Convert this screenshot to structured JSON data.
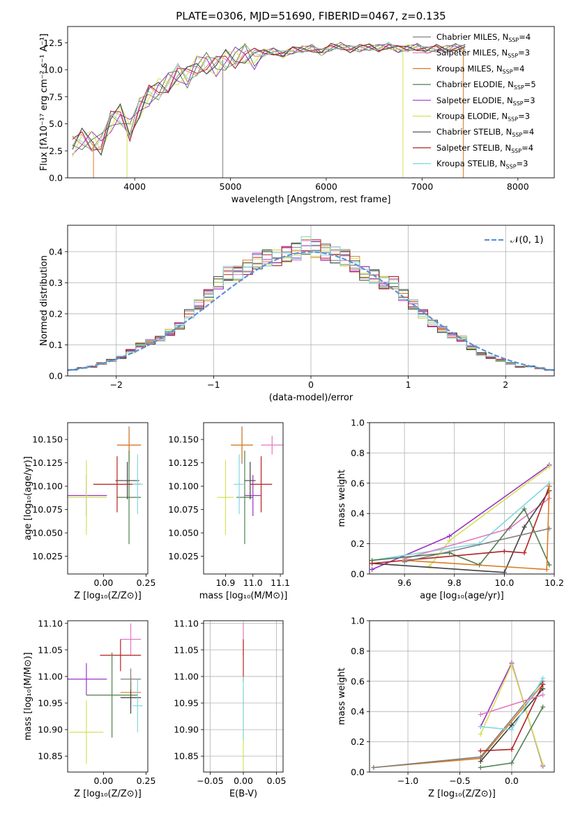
{
  "figure": {
    "title": "PLATE=0306, MJD=51690, FIBERID=0467, z=0.135"
  },
  "models": [
    {
      "name": "Chabrier MILES, N$_{SSP}$=4",
      "label": "Chabrier MILES, N",
      "sub": "SSP",
      "tail": "=4",
      "color": "#7f7f7f"
    },
    {
      "name": "Salpeter MILES, N$_{SSP}$=3",
      "label": "Salpeter MILES, N",
      "sub": "SSP",
      "tail": "=3",
      "color": "#e377c2"
    },
    {
      "name": "Kroupa MILES, N$_{SSP}$=4",
      "label": "Kroupa MILES, N",
      "sub": "SSP",
      "tail": "=4",
      "color": "#d97c23"
    },
    {
      "name": "Chabrier ELODIE, N$_{SSP}$=5",
      "label": "Chabrier ELODIE, N",
      "sub": "SSP",
      "tail": "=5",
      "color": "#4f7f4f"
    },
    {
      "name": "Salpeter ELODIE, N$_{SSP}$=3",
      "label": "Salpeter ELODIE, N",
      "sub": "SSP",
      "tail": "=3",
      "color": "#9b30c4"
    },
    {
      "name": "Kroupa ELODIE, N$_{SSP}$=3",
      "label": "Kroupa ELODIE, N",
      "sub": "SSP",
      "tail": "=3",
      "color": "#d4e157"
    },
    {
      "name": "Chabrier STELIB, N$_{SSP}$=4",
      "label": "Chabrier STELIB, N",
      "sub": "SSP",
      "tail": "=4",
      "color": "#404040"
    },
    {
      "name": "Salpeter STELIB, N$_{SSP}$=4",
      "label": "Salpeter STELIB, N",
      "sub": "SSP",
      "tail": "=4",
      "color": "#b22222"
    },
    {
      "name": "Kroupa STELIB, N$_{SSP}$=3",
      "label": "Kroupa STELIB, N",
      "sub": "SSP",
      "tail": "=3",
      "color": "#7fd8e0"
    }
  ],
  "chart_data": [
    {
      "id": "spectrum",
      "type": "line",
      "xlabel": "wavelength [Angstrom, rest frame]",
      "ylabel": "Flux [fλ10⁻¹⁷ erg cm⁻² s⁻¹ A⁻¹]",
      "xlim": [
        3300,
        8380
      ],
      "ylim": [
        0,
        14
      ],
      "xticks": [
        4000,
        5000,
        6000,
        7000,
        8000
      ],
      "yticks": [
        0.0,
        2.5,
        5.0,
        7.5,
        10.0,
        12.5
      ],
      "ytick_labels": [
        "0.0",
        "2.5",
        "5.0",
        "7.5",
        "10.0",
        "12.5"
      ],
      "x": [
        3350,
        3450,
        3550,
        3650,
        3750,
        3850,
        3950,
        4050,
        4150,
        4250,
        4350,
        4450,
        4550,
        4650,
        4750,
        4850,
        4950,
        5050,
        5150,
        5250,
        5350,
        5450,
        5550,
        5650,
        5750,
        5850,
        5950,
        6050,
        6150,
        6250,
        6350,
        6450,
        6550,
        6650,
        6750,
        6850,
        6950,
        7050,
        7150,
        7250,
        7350,
        7450
      ],
      "y": [
        2.9,
        3.6,
        3.4,
        3.1,
        5.2,
        5.9,
        4.4,
        6.4,
        7.6,
        8.2,
        8.8,
        9.6,
        9.3,
        10.4,
        10.6,
        10.3,
        10.9,
        11.1,
        11.5,
        11.0,
        11.6,
        11.7,
        11.4,
        11.8,
        11.9,
        12.0,
        11.6,
        12.1,
        12.2,
        11.9,
        12.0,
        12.1,
        12.0,
        12.2,
        11.9,
        12.0,
        12.1,
        11.8,
        12.0,
        11.9,
        12.1,
        12.0
      ]
    },
    {
      "id": "residuals",
      "type": "line",
      "xlabel": "(data-model)/error",
      "ylabel": "Normed distribution",
      "xlim": [
        -2.5,
        2.5
      ],
      "ylim": [
        0,
        0.485
      ],
      "xticks": [
        -2,
        -1,
        0,
        1,
        2
      ],
      "xtick_labels": [
        "−2",
        "−1",
        "0",
        "1",
        "2"
      ],
      "yticks": [
        0.0,
        0.1,
        0.2,
        0.3,
        0.4
      ],
      "ytick_labels": [
        "0.0",
        "0.1",
        "0.2",
        "0.3",
        "0.4"
      ],
      "gaussian_legend": "𝒩(0, 1)",
      "x": [
        -2.45,
        -2.35,
        -2.25,
        -2.15,
        -2.05,
        -1.95,
        -1.85,
        -1.75,
        -1.65,
        -1.55,
        -1.45,
        -1.35,
        -1.25,
        -1.15,
        -1.05,
        -0.95,
        -0.85,
        -0.75,
        -0.65,
        -0.55,
        -0.45,
        -0.35,
        -0.25,
        -0.15,
        -0.05,
        0.05,
        0.15,
        0.25,
        0.35,
        0.45,
        0.55,
        0.65,
        0.75,
        0.85,
        0.95,
        1.05,
        1.15,
        1.25,
        1.35,
        1.45,
        1.55,
        1.65,
        1.75,
        1.85,
        1.95,
        2.05,
        2.15,
        2.25,
        2.35,
        2.45
      ],
      "y": [
        0.02,
        0.025,
        0.03,
        0.04,
        0.05,
        0.06,
        0.08,
        0.1,
        0.11,
        0.12,
        0.14,
        0.16,
        0.2,
        0.23,
        0.26,
        0.3,
        0.33,
        0.33,
        0.35,
        0.37,
        0.38,
        0.38,
        0.39,
        0.4,
        0.42,
        0.41,
        0.4,
        0.39,
        0.38,
        0.36,
        0.33,
        0.32,
        0.3,
        0.3,
        0.26,
        0.23,
        0.2,
        0.17,
        0.15,
        0.13,
        0.12,
        0.09,
        0.07,
        0.06,
        0.05,
        0.04,
        0.03,
        0.03,
        0.025,
        0.02
      ]
    },
    {
      "id": "age_vs_Z",
      "type": "scatter",
      "xlabel": "Z [log₁₀(Z/Z⊙)]",
      "ylabel": "age  [log₁₀(age/yr)]",
      "xlim": [
        -0.21,
        0.26
      ],
      "ylim": [
        10.006,
        10.168
      ],
      "xticks": [
        0.0,
        0.25
      ],
      "xtick_labels": [
        "0.00",
        "0.25"
      ],
      "yticks": [
        10.025,
        10.05,
        10.075,
        10.1,
        10.125,
        10.15
      ],
      "ytick_labels": [
        "10.025",
        "10.050",
        "10.075",
        "10.100",
        "10.125",
        "10.150"
      ],
      "points": [
        {
          "series": "Chabrier MILES",
          "x": 0.15,
          "y": 10.144,
          "xerr": 0.07,
          "yerr": 0.02
        },
        {
          "series": "Salpeter MILES",
          "x": 0.15,
          "y": 10.144,
          "xerr": 0.07,
          "yerr": 0.01
        },
        {
          "series": "Kroupa MILES",
          "x": 0.15,
          "y": 10.144,
          "xerr": 0.07,
          "yerr": 0.018
        },
        {
          "series": "Chabrier ELODIE",
          "x": 0.15,
          "y": 10.088,
          "xerr": 0.07,
          "yerr": 0.05
        },
        {
          "series": "Salpeter ELODIE",
          "x": -0.1,
          "y": 10.09,
          "xerr": 0.12,
          "yerr": 0.022
        },
        {
          "series": "Kroupa ELODIE",
          "x": -0.1,
          "y": 10.088,
          "xerr": 0.12,
          "yerr": 0.04
        },
        {
          "series": "Chabrier STELIB",
          "x": 0.14,
          "y": 10.106,
          "xerr": 0.07,
          "yerr": 0.02
        },
        {
          "series": "Salpeter STELIB",
          "x": 0.08,
          "y": 10.102,
          "xerr": 0.14,
          "yerr": 0.03
        },
        {
          "series": "Kroupa STELIB",
          "x": 0.2,
          "y": 10.102,
          "xerr": 0.03,
          "yerr": 0.032
        }
      ]
    },
    {
      "id": "age_vs_mass",
      "type": "scatter",
      "xlabel": "mass [log₁₀(M/M⊙)]",
      "ylabel": "",
      "xlim": [
        10.82,
        11.11
      ],
      "ylim": [
        10.006,
        10.168
      ],
      "xticks": [
        10.9,
        11.0,
        11.1
      ],
      "xtick_labels": [
        "10.9",
        "11.0",
        "11.1"
      ],
      "yticks": [
        10.025,
        10.05,
        10.075,
        10.1,
        10.125,
        10.15
      ],
      "ytick_labels": [
        "10.025",
        "10.050",
        "10.075",
        "10.100",
        "10.125",
        "10.150"
      ],
      "points": [
        {
          "series": "Chabrier MILES",
          "x": 10.96,
          "y": 10.144,
          "xerr": 0.04,
          "yerr": 0.02
        },
        {
          "series": "Salpeter MILES",
          "x": 11.07,
          "y": 10.144,
          "xerr": 0.04,
          "yerr": 0.01
        },
        {
          "series": "Kroupa MILES",
          "x": 10.96,
          "y": 10.144,
          "xerr": 0.04,
          "yerr": 0.018
        },
        {
          "series": "Chabrier ELODIE",
          "x": 10.97,
          "y": 10.088,
          "xerr": 0.03,
          "yerr": 0.05
        },
        {
          "series": "Salpeter ELODIE",
          "x": 11.0,
          "y": 10.09,
          "xerr": 0.03,
          "yerr": 0.022
        },
        {
          "series": "Kroupa ELODIE",
          "x": 10.9,
          "y": 10.088,
          "xerr": 0.03,
          "yerr": 0.04
        },
        {
          "series": "Chabrier STELIB",
          "x": 10.99,
          "y": 10.106,
          "xerr": 0.02,
          "yerr": 0.02
        },
        {
          "series": "Salpeter STELIB",
          "x": 11.03,
          "y": 10.102,
          "xerr": 0.04,
          "yerr": 0.03
        },
        {
          "series": "Kroupa STELIB",
          "x": 10.95,
          "y": 10.102,
          "xerr": 0.02,
          "yerr": 0.032
        }
      ]
    },
    {
      "id": "weight_vs_age",
      "type": "line",
      "xlabel": "age  [log₁₀(age/yr)]",
      "ylabel": "mass weight",
      "xlim": [
        9.46,
        10.2
      ],
      "ylim": [
        0,
        1
      ],
      "xticks": [
        9.6,
        9.8,
        10.0,
        10.2
      ],
      "xtick_labels": [
        "9.6",
        "9.8",
        "10.0",
        "10.2"
      ],
      "yticks": [
        0,
        0.2,
        0.4,
        0.6,
        0.8,
        1.0
      ],
      "ytick_labels": [
        "0.0",
        "0.2",
        "0.4",
        "0.6",
        "0.8",
        "1.0"
      ],
      "series": [
        {
          "name": "Salpeter ELODIE",
          "x": [
            9.47,
            9.78,
            10.18
          ],
          "y": [
            0.03,
            0.25,
            0.72
          ]
        },
        {
          "name": "Kroupa ELODIE",
          "x": [
            9.7,
            9.78,
            10.18
          ],
          "y": [
            0.05,
            0.22,
            0.71
          ]
        },
        {
          "name": "Kroupa STELIB",
          "x": [
            9.47,
            9.9,
            10.18
          ],
          "y": [
            0.09,
            0.2,
            0.6
          ]
        },
        {
          "name": "Salpeter MILES",
          "x": [
            9.6,
            10.02,
            10.18
          ],
          "y": [
            0.1,
            0.3,
            0.5
          ]
        },
        {
          "name": "Chabrier ELODIE",
          "x": [
            9.47,
            9.78,
            9.9,
            10.08,
            10.18
          ],
          "y": [
            0.09,
            0.14,
            0.06,
            0.43,
            0.06
          ]
        },
        {
          "name": "Chabrier STELIB",
          "x": [
            9.47,
            10.0,
            10.08,
            10.18
          ],
          "y": [
            0.07,
            0.01,
            0.31,
            0.55
          ]
        },
        {
          "name": "Salpeter STELIB",
          "x": [
            9.47,
            10.0,
            10.08,
            10.18
          ],
          "y": [
            0.07,
            0.15,
            0.14,
            0.58
          ]
        },
        {
          "name": "Kroupa MILES",
          "x": [
            9.6,
            10.17,
            10.18
          ],
          "y": [
            0.09,
            0.03,
            0.58
          ]
        },
        {
          "name": "Chabrier MILES",
          "x": [
            9.6,
            10.18
          ],
          "y": [
            0.08,
            0.3
          ]
        }
      ]
    },
    {
      "id": "mass_vs_Z",
      "type": "scatter",
      "xlabel": "Z [log₁₀(Z/Z⊙)]",
      "ylabel": "mass [log₁₀(M/M⊙)]",
      "xlim": [
        -0.21,
        0.26
      ],
      "ylim": [
        10.82,
        11.105
      ],
      "xticks": [
        0.0,
        0.25
      ],
      "xtick_labels": [
        "0.00",
        "0.25"
      ],
      "yticks": [
        10.85,
        10.9,
        10.95,
        11.0,
        11.05,
        11.1
      ],
      "ytick_labels": [
        "10.85",
        "10.90",
        "10.95",
        "11.00",
        "11.05",
        "11.10"
      ],
      "points": [
        {
          "series": "Salpeter MILES",
          "x": 0.16,
          "y": 11.07,
          "xerr": 0.06,
          "yerr": 0.03
        },
        {
          "series": "Salpeter STELIB",
          "x": 0.1,
          "y": 11.04,
          "xerr": 0.12,
          "yerr": 0.03
        },
        {
          "series": "Salpeter ELODIE",
          "x": -0.1,
          "y": 10.995,
          "xerr": 0.12,
          "yerr": 0.03
        },
        {
          "series": "Kroupa MILES",
          "x": 0.16,
          "y": 10.97,
          "xerr": 0.06,
          "yerr": 0.03
        },
        {
          "series": "Chabrier ELODIE",
          "x": 0.05,
          "y": 10.965,
          "xerr": 0.15,
          "yerr": 0.08
        },
        {
          "series": "Chabrier STELIB",
          "x": 0.16,
          "y": 10.96,
          "xerr": 0.06,
          "yerr": 0.03
        },
        {
          "series": "Kroupa STELIB",
          "x": 0.2,
          "y": 10.945,
          "xerr": 0.03,
          "yerr": 0.05
        },
        {
          "series": "Kroupa ELODIE",
          "x": -0.1,
          "y": 10.895,
          "xerr": 0.1,
          "yerr": 0.06
        },
        {
          "series": "Chabrier MILES",
          "x": 0.16,
          "y": 10.995,
          "xerr": 0.06,
          "yerr": 0.02
        }
      ]
    },
    {
      "id": "mass_vs_ebv",
      "type": "scatter",
      "xlabel": "E(B-V)",
      "ylabel": "",
      "xlim": [
        -0.06,
        0.06
      ],
      "ylim": [
        10.82,
        11.105
      ],
      "xticks": [
        -0.05,
        0.0,
        0.05
      ],
      "xtick_labels": [
        "−0.05",
        "0.00",
        "0.05"
      ],
      "yticks": [
        10.85,
        10.9,
        10.95,
        11.0,
        11.05,
        11.1
      ],
      "ytick_labels": [
        "10.85",
        "10.90",
        "10.95",
        "11.00",
        "11.05",
        "11.10"
      ],
      "points": [
        {
          "series": "Salpeter MILES",
          "x": 0.0,
          "y": 11.07,
          "xerr": 0,
          "yerr": 0.03
        },
        {
          "series": "Salpeter STELIB",
          "x": 0.0,
          "y": 11.03,
          "xerr": 0,
          "yerr": 0.04
        },
        {
          "series": "Kroupa ELODIE",
          "x": 0.0,
          "y": 10.9,
          "xerr": 0,
          "yerr": 0.08
        },
        {
          "series": "Kroupa STELIB",
          "x": 0.0,
          "y": 10.94,
          "xerr": 0,
          "yerr": 0.06
        }
      ]
    },
    {
      "id": "weight_vs_Z",
      "type": "line",
      "xlabel": "Z [log₁₀(Z/Z⊙)]",
      "ylabel": "mass weight",
      "xlim": [
        -1.37,
        0.41
      ],
      "ylim": [
        0,
        1
      ],
      "xticks": [
        -1.0,
        -0.5,
        0.0
      ],
      "xtick_labels": [
        "−1.0",
        "−0.5",
        "0.0"
      ],
      "yticks": [
        0,
        0.2,
        0.4,
        0.6,
        0.8,
        1.0
      ],
      "ytick_labels": [
        "0.0",
        "0.2",
        "0.4",
        "0.6",
        "0.8",
        "1.0"
      ],
      "series": [
        {
          "name": "Kroupa MILES",
          "x": [
            -1.33,
            -0.3,
            0.3
          ],
          "y": [
            0.03,
            0.09,
            0.58
          ]
        },
        {
          "name": "Chabrier MILES",
          "x": [
            -1.33,
            -0.3,
            0.3
          ],
          "y": [
            0.03,
            0.1,
            0.6
          ]
        },
        {
          "name": "Salpeter ELODIE",
          "x": [
            -0.3,
            0.0,
            0.3
          ],
          "y": [
            0.3,
            0.72,
            0.04
          ]
        },
        {
          "name": "Kroupa ELODIE",
          "x": [
            -0.3,
            0.0,
            0.3
          ],
          "y": [
            0.25,
            0.71,
            0.05
          ]
        },
        {
          "name": "Salpeter STELIB",
          "x": [
            -0.3,
            0.0,
            0.3
          ],
          "y": [
            0.14,
            0.15,
            0.58
          ]
        },
        {
          "name": "Chabrier STELIB",
          "x": [
            -0.3,
            0.0,
            0.3
          ],
          "y": [
            0.07,
            0.31,
            0.55
          ]
        },
        {
          "name": "Chabrier ELODIE",
          "x": [
            -0.3,
            0.0,
            0.3
          ],
          "y": [
            0.03,
            0.06,
            0.43
          ]
        },
        {
          "name": "Kroupa STELIB",
          "x": [
            -0.3,
            0.0,
            0.3
          ],
          "y": [
            0.3,
            0.28,
            0.62
          ]
        },
        {
          "name": "Salpeter MILES",
          "x": [
            -0.3,
            0.3
          ],
          "y": [
            0.38,
            0.51
          ]
        }
      ]
    }
  ]
}
